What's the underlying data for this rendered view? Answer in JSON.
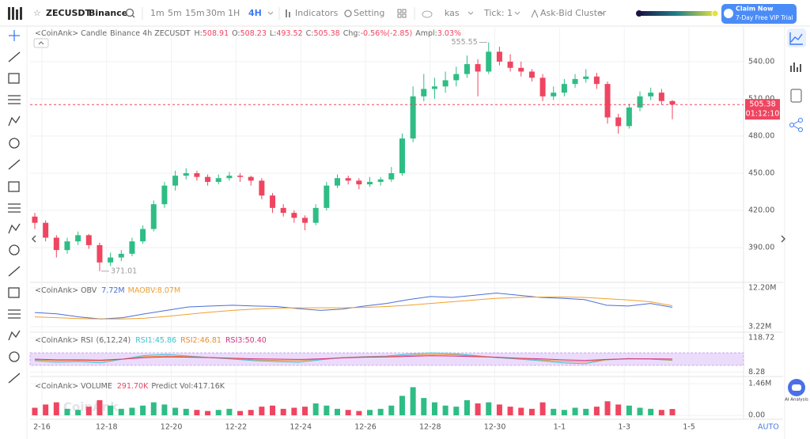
{
  "toolbar": {
    "symbol": "ZECUSDT",
    "exchange": "Binance",
    "intervals": [
      "1m",
      "5m",
      "15m",
      "30m",
      "1H",
      "4H"
    ],
    "indicators": "Indicators",
    "setting": "Setting",
    "source": "kas",
    "tick_label": "Tick:",
    "tick_value": "1",
    "cluster": "Ask-Bid Cluster",
    "promo_title": "Claim Now",
    "promo_subtitle": "7-Day Free VIP Trial"
  },
  "main": {
    "source": "<CoinAnk> Candle",
    "market": "Binance 4h ZECUSDT",
    "stats": [
      {
        "label": "H:",
        "value": "508.91"
      },
      {
        "label": "O:",
        "value": "508.23"
      },
      {
        "label": "L:",
        "value": "493.52"
      },
      {
        "label": "C:",
        "value": "505.38"
      },
      {
        "label": "Chg:",
        "value": "-0.56%(-2.85)"
      },
      {
        "label": "Ampl:",
        "value": "3.03%"
      }
    ],
    "up_color": "#2ebd85",
    "down_color": "#ef4560",
    "ylim": [
      363.2,
      567.4
    ],
    "yticks": [
      {
        "value": 390,
        "label": "390.00"
      },
      {
        "value": 420,
        "label": "420.00"
      },
      {
        "value": 450,
        "label": "450.00"
      },
      {
        "value": 480,
        "label": "480.00"
      },
      {
        "value": 510,
        "label": "510.00"
      },
      {
        "value": 540,
        "label": "540.00"
      }
    ],
    "last_price": {
      "value": 505.38,
      "label": "505.38"
    },
    "countdown": "01:12:10",
    "annotations": {
      "high": 555.55,
      "low": 371.01
    },
    "candles": [
      [
        415,
        418,
        405,
        410
      ],
      [
        410,
        412,
        395,
        398
      ],
      [
        398,
        400,
        382,
        388
      ],
      [
        388,
        398,
        385,
        395
      ],
      [
        395,
        403,
        392,
        400
      ],
      [
        400,
        401,
        389,
        392
      ],
      [
        392,
        394,
        371.01,
        378
      ],
      [
        378,
        386,
        375,
        382
      ],
      [
        382,
        388,
        379,
        385
      ],
      [
        385,
        398,
        383,
        395
      ],
      [
        395,
        408,
        393,
        405
      ],
      [
        405,
        428,
        403,
        425
      ],
      [
        425,
        443,
        422,
        440
      ],
      [
        440,
        452,
        436,
        448
      ],
      [
        448,
        454,
        445,
        450
      ],
      [
        450,
        452,
        444,
        447
      ],
      [
        447,
        449,
        440,
        443
      ],
      [
        443,
        449,
        441,
        446
      ],
      [
        446,
        451,
        444,
        448
      ],
      [
        448,
        450,
        443,
        447
      ],
      [
        447,
        448,
        440,
        444
      ],
      [
        444,
        446,
        429,
        432
      ],
      [
        432,
        434,
        418,
        422
      ],
      [
        422,
        425,
        415,
        418
      ],
      [
        418,
        420,
        410,
        414
      ],
      [
        414,
        416,
        404,
        410
      ],
      [
        410,
        425,
        408,
        422
      ],
      [
        422,
        443,
        420,
        440
      ],
      [
        440,
        449,
        438,
        446
      ],
      [
        446,
        448,
        441,
        444
      ],
      [
        444,
        446,
        437,
        441
      ],
      [
        441,
        447,
        439,
        443
      ],
      [
        443,
        447,
        440,
        445
      ],
      [
        445,
        455,
        443,
        450
      ],
      [
        450,
        482,
        448,
        478
      ],
      [
        478,
        520,
        475,
        512
      ],
      [
        512,
        530,
        508,
        518
      ],
      [
        518,
        527,
        510,
        520
      ],
      [
        520,
        532,
        515,
        525
      ],
      [
        525,
        536,
        520,
        530
      ],
      [
        530,
        545,
        527,
        538
      ],
      [
        538,
        542,
        512,
        532
      ],
      [
        532,
        555.55,
        530,
        548
      ],
      [
        548,
        552,
        537,
        540
      ],
      [
        540,
        546,
        532,
        535
      ],
      [
        535,
        540,
        528,
        532
      ],
      [
        532,
        534,
        524,
        527
      ],
      [
        527,
        530,
        508,
        512
      ],
      [
        512,
        520,
        509,
        515
      ],
      [
        515,
        526,
        512,
        522
      ],
      [
        522,
        530,
        519,
        526
      ],
      [
        526,
        534,
        523,
        528
      ],
      [
        528,
        531,
        518,
        522
      ],
      [
        522,
        524,
        490,
        495
      ],
      [
        495,
        498,
        482,
        488
      ],
      [
        488,
        506,
        486,
        503
      ],
      [
        503,
        516,
        500,
        512
      ],
      [
        512,
        519,
        509,
        515
      ],
      [
        515,
        518,
        505,
        508.23
      ],
      [
        508.23,
        508.91,
        493.52,
        505.38
      ]
    ]
  },
  "obv": {
    "title": "<CoinAnk> OBV",
    "obv_label": "7.72M",
    "maobv_label": "MAOBV:8.07M",
    "ylim": [
      1.94,
      13.3
    ],
    "yticks": [
      {
        "value": 12.2,
        "label": "12.20M"
      },
      {
        "value": 3.22,
        "label": "3.22M"
      }
    ],
    "series": [
      {
        "name": "OBV",
        "color": "#4a6fd8",
        "values": [
          6.5,
          6.2,
          5.5,
          5.0,
          5.3,
          6.2,
          7.0,
          7.8,
          8.0,
          8.2,
          8.0,
          7.9,
          7.4,
          7.0,
          7.3,
          8.0,
          8.6,
          9.5,
          10.2,
          10.0,
          10.5,
          11.0,
          10.5,
          10.0,
          9.8,
          9.5,
          8.2,
          8.0,
          8.6,
          7.72
        ]
      },
      {
        "name": "MAOBV",
        "color": "#f0a030",
        "values": [
          5.5,
          5.3,
          5.1,
          5.0,
          5.0,
          5.2,
          5.6,
          6.1,
          6.6,
          7.0,
          7.3,
          7.5,
          7.6,
          7.6,
          7.6,
          7.7,
          7.9,
          8.2,
          8.6,
          9.0,
          9.4,
          9.8,
          10.0,
          10.1,
          10.1,
          10.0,
          9.7,
          9.4,
          9.0,
          8.07
        ]
      }
    ]
  },
  "rsi": {
    "title": "<CoinAnk> RSI",
    "params": "(6,12,24)",
    "labels": [
      "RSI1:45.86",
      "RSI2:46.81",
      "RSI3:50.40"
    ],
    "ylim": [
      -3.4,
      131.6
    ],
    "yticks": [
      118.72,
      8.28
    ],
    "band": [
      30,
      70
    ],
    "band_color": "#ecdcfb",
    "series": [
      {
        "name": "RSI1",
        "color": "#3cc4d2",
        "values": [
          45,
          40,
          42,
          38,
          50,
          62,
          65,
          60,
          55,
          50,
          45,
          42,
          40,
          48,
          55,
          58,
          60,
          66,
          70,
          68,
          62,
          55,
          50,
          45,
          38,
          35,
          48,
          52,
          50,
          45.86
        ]
      },
      {
        "name": "RSI2",
        "color": "#f08c2a",
        "values": [
          48,
          45,
          46,
          44,
          50,
          58,
          60,
          58,
          55,
          52,
          48,
          46,
          45,
          50,
          55,
          57,
          58,
          62,
          65,
          64,
          60,
          56,
          52,
          48,
          43,
          41,
          48,
          51,
          50,
          46.81
        ]
      },
      {
        "name": "RSI3",
        "color": "#d63384",
        "values": [
          50,
          48,
          48,
          47,
          50,
          55,
          57,
          56,
          55,
          53,
          51,
          50,
          49,
          51,
          54,
          56,
          57,
          59,
          61,
          60,
          58,
          56,
          53,
          51,
          48,
          46,
          49,
          51,
          51,
          50.4
        ]
      }
    ]
  },
  "volume": {
    "title": "<CoinAnk> VOLUME",
    "current": "291.70K",
    "predict": "Predict Vol:417.16K",
    "watermark": "CoinAnk",
    "ylim": [
      -0.18,
      1.72
    ],
    "yticks": [
      {
        "value": 1.46,
        "label": "1.46M"
      },
      {
        "value": 0,
        "label": "0.00"
      }
    ],
    "values": [
      0.35,
      0.5,
      0.6,
      0.3,
      0.25,
      0.4,
      0.7,
      0.45,
      0.3,
      0.35,
      0.45,
      0.6,
      0.5,
      0.35,
      0.3,
      0.25,
      0.2,
      0.25,
      0.3,
      0.2,
      0.25,
      0.4,
      0.45,
      0.3,
      0.35,
      0.4,
      0.55,
      0.45,
      0.3,
      0.25,
      0.2,
      0.25,
      0.3,
      0.45,
      0.9,
      1.3,
      0.8,
      0.6,
      0.45,
      0.4,
      0.7,
      0.55,
      0.6,
      0.5,
      0.4,
      0.35,
      0.3,
      0.6,
      0.3,
      0.25,
      0.35,
      0.3,
      0.4,
      0.65,
      0.5,
      0.45,
      0.35,
      0.3,
      0.25,
      0.2917
    ]
  },
  "x_labels": [
    "2-16",
    "12-18",
    "12-20",
    "12-22",
    "12-24",
    "12-26",
    "12-28",
    "12-30",
    "1-1",
    "1-3",
    "1-5"
  ],
  "axis_mode": "AUTO",
  "ai_badge": "AI Analysis"
}
